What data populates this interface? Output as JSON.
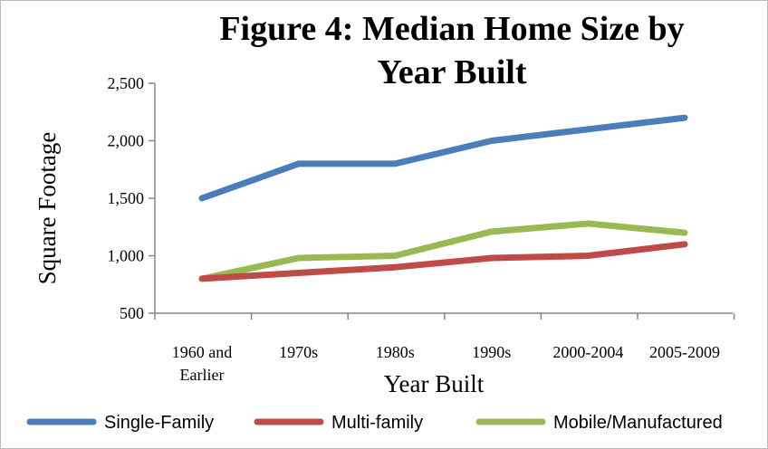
{
  "chart_data": {
    "type": "line",
    "title_lines": [
      "Figure 4: Median Home Size by",
      "Year Built"
    ],
    "xlabel": "Year Built",
    "ylabel": "Square Footage",
    "categories": [
      [
        "1960 and",
        "Earlier"
      ],
      [
        "1970s"
      ],
      [
        "1980s"
      ],
      [
        "1990s"
      ],
      [
        "2000-2004"
      ],
      [
        "2005-2009"
      ]
    ],
    "y_ticks": [
      "500",
      "1,000",
      "1,500",
      "2,000",
      "2,500"
    ],
    "ylim": [
      500,
      2500
    ],
    "grid": false,
    "legend_position": "bottom",
    "series": [
      {
        "name": "Single-Family",
        "color": "#4a7ebb",
        "values": [
          1500,
          1800,
          1800,
          2000,
          2100,
          2200
        ]
      },
      {
        "name": "Multi-family",
        "color": "#be4b48",
        "values": [
          800,
          850,
          900,
          980,
          1000,
          1100
        ]
      },
      {
        "name": "Mobile/Manufactured",
        "color": "#98b954",
        "values": [
          800,
          980,
          1000,
          1210,
          1280,
          1200
        ]
      }
    ]
  }
}
